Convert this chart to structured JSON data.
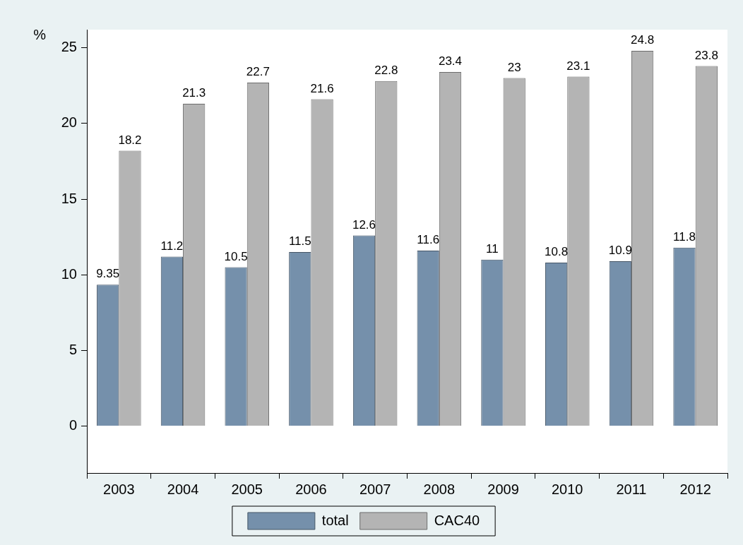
{
  "chart_data": {
    "type": "bar",
    "ylabel": "%",
    "categories": [
      "2003",
      "2004",
      "2005",
      "2006",
      "2007",
      "2008",
      "2009",
      "2010",
      "2011",
      "2012"
    ],
    "series": [
      {
        "name": "total",
        "color": "#7590ab",
        "values": [
          9.35,
          11.2,
          10.5,
          11.5,
          12.6,
          11.6,
          11,
          10.8,
          10.9,
          11.8
        ]
      },
      {
        "name": "CAC40",
        "color": "#b4b4b4",
        "values": [
          18.2,
          21.3,
          22.7,
          21.6,
          22.8,
          23.4,
          23,
          23.1,
          24.8,
          23.8
        ]
      }
    ],
    "ylim": [
      -3.1,
      26.2
    ],
    "yticks": [
      0,
      5,
      10,
      15,
      20,
      25
    ],
    "grid": false,
    "legend": "bottom",
    "data_labels": true
  }
}
